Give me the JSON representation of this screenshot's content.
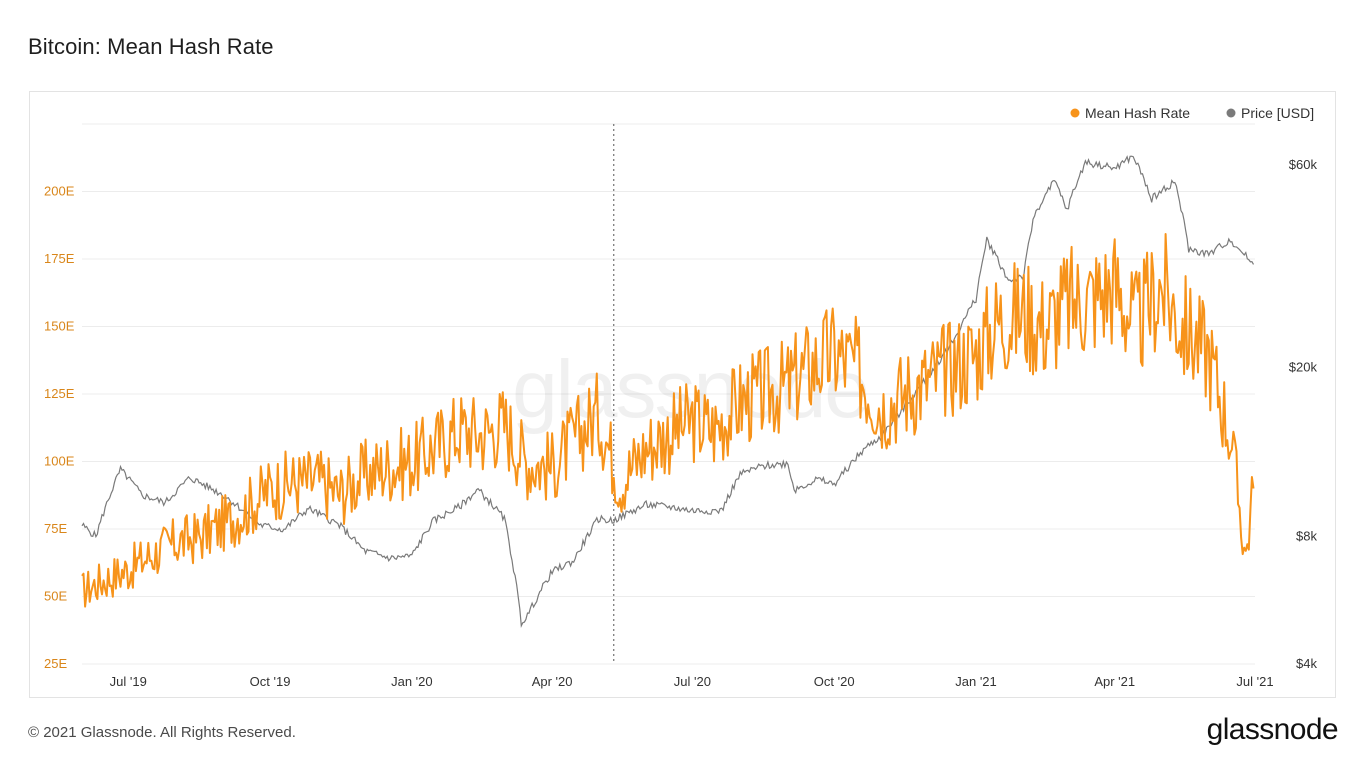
{
  "title": "Bitcoin: Mean Hash Rate",
  "footer": {
    "copyright": "© 2021 Glassnode. All Rights Reserved.",
    "logo": "glassnode"
  },
  "watermark": "glassnode",
  "colors": {
    "hash_rate": "#f7931a",
    "price": "#7a7a7a",
    "grid": "#ececec",
    "left_axis_text": "#d9861a"
  },
  "chart_data": {
    "type": "line",
    "legend_position": "top-right",
    "grid": true,
    "x_ticks": [
      "Jul '19",
      "Oct '19",
      "Jan '20",
      "Apr '20",
      "Jul '20",
      "Oct '20",
      "Jan '21",
      "Apr '21",
      "Jul '21"
    ],
    "y_left": {
      "ticks": [
        "25E",
        "50E",
        "75E",
        "100E",
        "125E",
        "150E",
        "175E",
        "200E"
      ],
      "range": [
        25,
        225
      ]
    },
    "y_right": {
      "scale": "log",
      "ticks": [
        "$4k",
        "$8k",
        "$20k",
        "$60k"
      ],
      "range": [
        4000,
        75000
      ]
    },
    "x_range": [
      "2019-06-01",
      "2021-07-01"
    ],
    "marker_date": "2020-05-11",
    "series": [
      {
        "name": "Mean Hash Rate",
        "axis": "left",
        "x": [
          "2019-06-01",
          "2019-06-15",
          "2019-07-01",
          "2019-07-15",
          "2019-08-01",
          "2019-08-15",
          "2019-09-01",
          "2019-09-15",
          "2019-10-01",
          "2019-10-15",
          "2019-11-01",
          "2019-11-15",
          "2019-12-01",
          "2019-12-15",
          "2020-01-01",
          "2020-01-15",
          "2020-02-01",
          "2020-02-15",
          "2020-03-01",
          "2020-03-15",
          "2020-04-01",
          "2020-04-15",
          "2020-05-01",
          "2020-05-15",
          "2020-06-01",
          "2020-06-15",
          "2020-07-01",
          "2020-07-15",
          "2020-08-01",
          "2020-08-15",
          "2020-09-01",
          "2020-09-15",
          "2020-10-01",
          "2020-10-15",
          "2020-11-01",
          "2020-11-15",
          "2020-12-01",
          "2020-12-15",
          "2021-01-01",
          "2021-01-15",
          "2021-02-01",
          "2021-02-15",
          "2021-03-01",
          "2021-03-15",
          "2021-04-01",
          "2021-04-15",
          "2021-05-01",
          "2021-05-15",
          "2021-06-01",
          "2021-06-15",
          "2021-06-25",
          "2021-06-30"
        ],
        "values": [
          52,
          56,
          60,
          65,
          70,
          72,
          77,
          82,
          90,
          92,
          93,
          88,
          95,
          98,
          100,
          105,
          112,
          110,
          114,
          100,
          98,
          108,
          118,
          92,
          105,
          110,
          115,
          112,
          122,
          125,
          128,
          135,
          140,
          135,
          120,
          125,
          130,
          135,
          140,
          152,
          155,
          150,
          158,
          160,
          165,
          150,
          165,
          150,
          140,
          110,
          65,
          90
        ]
      },
      {
        "name": "Price [USD]",
        "axis": "right",
        "x": [
          "2019-06-01",
          "2019-06-10",
          "2019-06-26",
          "2019-07-10",
          "2019-07-25",
          "2019-08-10",
          "2019-09-01",
          "2019-09-25",
          "2019-10-10",
          "2019-10-26",
          "2019-11-15",
          "2019-12-01",
          "2019-12-18",
          "2020-01-01",
          "2020-01-15",
          "2020-02-01",
          "2020-02-13",
          "2020-03-01",
          "2020-03-12",
          "2020-03-16",
          "2020-04-01",
          "2020-04-15",
          "2020-05-01",
          "2020-05-10",
          "2020-06-01",
          "2020-06-15",
          "2020-07-01",
          "2020-07-20",
          "2020-08-01",
          "2020-08-15",
          "2020-09-01",
          "2020-09-05",
          "2020-09-20",
          "2020-10-01",
          "2020-10-21",
          "2020-11-01",
          "2020-11-15",
          "2020-12-01",
          "2020-12-17",
          "2021-01-01",
          "2021-01-08",
          "2021-01-22",
          "2021-02-01",
          "2021-02-08",
          "2021-02-21",
          "2021-03-01",
          "2021-03-13",
          "2021-04-01",
          "2021-04-13",
          "2021-04-25",
          "2021-05-10",
          "2021-05-19",
          "2021-06-01",
          "2021-06-15",
          "2021-06-30"
        ],
        "values": [
          8500,
          8000,
          11500,
          10000,
          9600,
          11000,
          10000,
          8500,
          8300,
          9300,
          8500,
          7400,
          7100,
          7200,
          8700,
          9400,
          10300,
          8800,
          5000,
          5200,
          6600,
          7000,
          8800,
          8700,
          9500,
          9400,
          9200,
          9200,
          11200,
          11700,
          11900,
          10300,
          10900,
          10600,
          12900,
          13800,
          16000,
          19000,
          23000,
          29000,
          40000,
          32000,
          33000,
          46000,
          55000,
          47000,
          61000,
          59000,
          63000,
          50000,
          55000,
          38000,
          37000,
          40000,
          35000
        ]
      }
    ]
  }
}
